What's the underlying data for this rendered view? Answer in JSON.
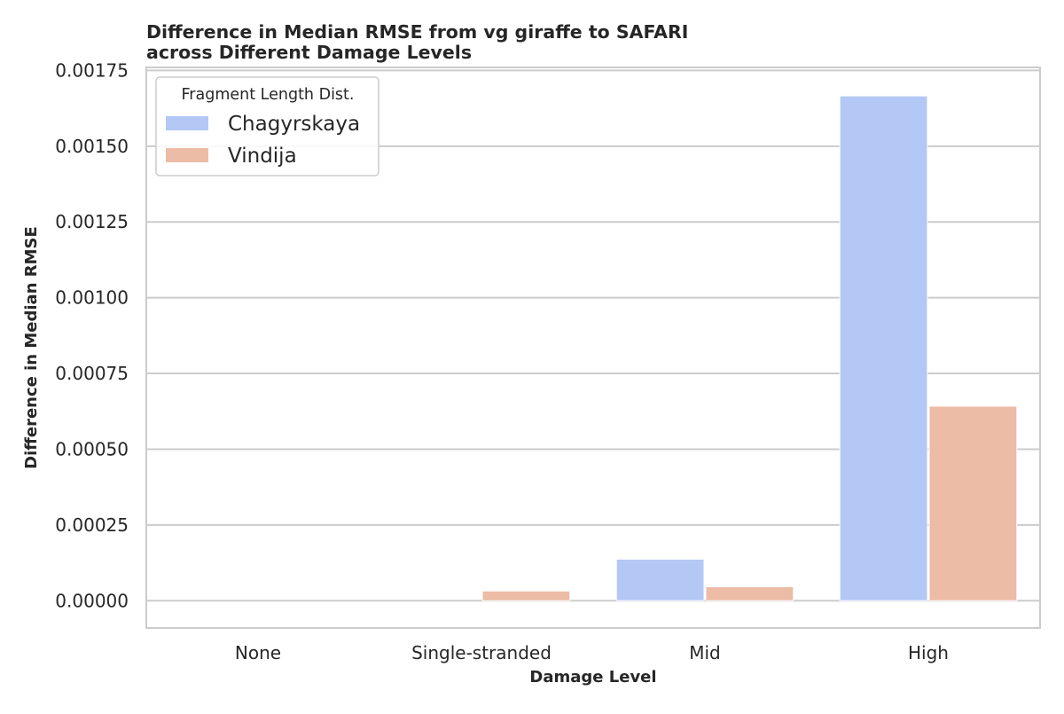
{
  "chart_data": {
    "type": "bar",
    "title_lines": [
      "Difference in Median RMSE from vg giraffe to SAFARI",
      "across Different Damage Levels"
    ],
    "xlabel": "Damage Level",
    "ylabel": "Difference in Median RMSE",
    "categories": [
      "None",
      "Single-stranded",
      "Mid",
      "High"
    ],
    "series": [
      {
        "name": "Chagyrskaya",
        "values": [
          0.0,
          0.0,
          0.000137,
          0.001666
        ],
        "color": "#b3c8f4"
      },
      {
        "name": "Vindija",
        "values": [
          0.0,
          3.2e-05,
          4.6e-05,
          0.000642
        ],
        "color": "#ecbca6"
      }
    ],
    "ylim": [
      -9e-05,
      0.00176
    ],
    "yticks": [
      0.0,
      0.00025,
      0.0005,
      0.00075,
      0.001,
      0.00125,
      0.0015,
      0.00175
    ],
    "ytick_labels": [
      "0.00000",
      "0.00025",
      "0.00050",
      "0.00075",
      "0.00100",
      "0.00125",
      "0.00150",
      "0.00175"
    ],
    "grid": true,
    "legend": {
      "title": "Fragment Length Dist.",
      "placement": "top-left"
    }
  }
}
